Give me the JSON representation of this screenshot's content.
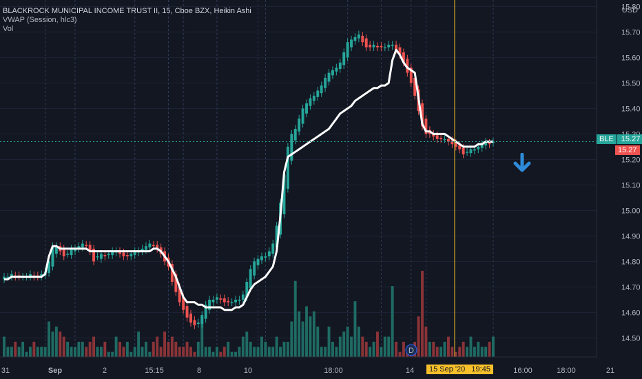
{
  "legend": {
    "title": "BLACKROCK MUNICIPAL INCOME TRUST II, 15, Cboe BZX, Heikin Ashi",
    "indicator1": "VWAP (Session, hlc3)",
    "indicator2": "Vol"
  },
  "axis": {
    "currency": "USD",
    "symbol_tag": "BLE",
    "last_price": "15.27",
    "vwap_price": "15.27",
    "crosshair_time": "15 Sep '20   19:45",
    "d_marker": "D"
  },
  "colors": {
    "up": "#26a69a",
    "down": "#ef5350",
    "vwap": "#ffffff",
    "crosshair": "#f7c02b",
    "arrow": "#2e8bd8",
    "background": "#131722"
  },
  "chart_data": {
    "type": "candlestick",
    "title": "BLACKROCK MUNICIPAL INCOME TRUST II, 15, Cboe BZX, Heikin Ashi",
    "ylim": [
      14.42,
      15.82
    ],
    "y_ticks": [
      14.5,
      14.6,
      14.7,
      14.8,
      14.9,
      15.0,
      15.1,
      15.2,
      15.3,
      15.4,
      15.5,
      15.6,
      15.7,
      15.8
    ],
    "x_ticks": [
      "31",
      "Sep",
      "2",
      "15:15",
      "8",
      "10",
      "18:00",
      "14",
      "16:00",
      "18:00",
      "21"
    ],
    "series": [
      {
        "name": "Heikin Ashi close",
        "values": [
          14.74,
          14.74,
          14.75,
          14.74,
          14.74,
          14.74,
          14.74,
          14.75,
          14.74,
          14.74,
          14.75,
          14.76,
          14.8,
          14.86,
          14.86,
          14.84,
          14.82,
          14.83,
          14.85,
          14.85,
          14.86,
          14.87,
          14.86,
          14.84,
          14.8,
          14.82,
          14.83,
          14.82,
          14.83,
          14.84,
          14.84,
          14.83,
          14.82,
          14.82,
          14.83,
          14.84,
          14.84,
          14.85,
          14.86,
          14.87,
          14.86,
          14.85,
          14.83,
          14.8,
          14.78,
          14.72,
          14.68,
          14.64,
          14.61,
          14.58,
          14.56,
          14.55,
          14.56,
          14.59,
          14.63,
          14.65,
          14.65,
          14.66,
          14.65,
          14.64,
          14.64,
          14.64,
          14.65,
          14.65,
          14.67,
          14.72,
          14.77,
          14.8,
          14.81,
          14.82,
          14.82,
          14.84,
          14.87,
          14.94,
          15.03,
          15.14,
          15.25,
          15.3,
          15.32,
          15.36,
          15.4,
          15.42,
          15.44,
          15.45,
          15.47,
          15.49,
          15.52,
          15.54,
          15.55,
          15.56,
          15.58,
          15.62,
          15.66,
          15.67,
          15.68,
          15.69,
          15.66,
          15.64,
          15.64,
          15.65,
          15.64,
          15.64,
          15.64,
          15.65,
          15.65,
          15.63,
          15.61,
          15.58,
          15.54,
          15.5,
          15.45,
          15.39,
          15.33,
          15.3,
          15.3,
          15.29,
          15.28,
          15.28,
          15.28,
          15.27,
          15.26,
          15.25,
          15.24,
          15.22,
          15.23,
          15.24,
          15.24,
          15.25,
          15.26,
          15.27,
          15.26,
          15.27
        ]
      },
      {
        "name": "VWAP (Session, hlc3)",
        "values": [
          14.73,
          14.73,
          14.74,
          14.74,
          14.74,
          14.74,
          14.74,
          14.74,
          14.74,
          14.74,
          14.74,
          14.75,
          14.82,
          14.86,
          14.86,
          14.85,
          14.85,
          14.85,
          14.85,
          14.85,
          14.85,
          14.85,
          14.85,
          14.84,
          14.84,
          14.84,
          14.84,
          14.84,
          14.84,
          14.84,
          14.84,
          14.84,
          14.84,
          14.84,
          14.84,
          14.84,
          14.84,
          14.84,
          14.84,
          14.84,
          14.85,
          14.85,
          14.84,
          14.82,
          14.8,
          14.77,
          14.74,
          14.7,
          14.66,
          14.64,
          14.64,
          14.64,
          14.63,
          14.63,
          14.62,
          14.62,
          14.62,
          14.62,
          14.62,
          14.61,
          14.61,
          14.61,
          14.62,
          14.62,
          14.63,
          14.66,
          14.69,
          14.71,
          14.72,
          14.73,
          14.74,
          14.76,
          14.78,
          14.84,
          14.98,
          15.15,
          15.21,
          15.22,
          15.23,
          15.24,
          15.25,
          15.26,
          15.27,
          15.28,
          15.29,
          15.3,
          15.31,
          15.32,
          15.34,
          15.36,
          15.38,
          15.39,
          15.4,
          15.41,
          15.43,
          15.44,
          15.45,
          15.46,
          15.47,
          15.48,
          15.48,
          15.49,
          15.49,
          15.5,
          15.59,
          15.63,
          15.61,
          15.58,
          15.56,
          15.55,
          15.54,
          15.44,
          15.34,
          15.31,
          15.31,
          15.3,
          15.3,
          15.3,
          15.3,
          15.29,
          15.28,
          15.27,
          15.26,
          15.25,
          15.25,
          15.25,
          15.25,
          15.26,
          15.26,
          15.27,
          15.27,
          15.27
        ]
      },
      {
        "name": "Vol",
        "values": [
          4,
          2,
          2,
          3,
          2,
          3,
          1,
          2,
          3,
          2,
          2,
          2,
          7,
          5,
          6,
          5,
          4,
          3,
          2,
          2,
          3,
          3,
          2,
          3,
          4,
          2,
          2,
          3,
          1,
          1,
          4,
          3,
          2,
          3,
          1,
          2,
          5,
          2,
          3,
          1,
          3,
          4,
          2,
          5,
          3,
          4,
          3,
          2,
          2,
          3,
          2,
          1,
          3,
          8,
          2,
          2,
          1,
          2,
          1,
          2,
          3,
          1,
          1,
          2,
          4,
          5,
          3,
          2,
          2,
          4,
          3,
          2,
          2,
          4,
          2,
          3,
          3,
          7,
          15,
          9,
          7,
          10,
          8,
          9,
          6,
          2,
          2,
          6,
          3,
          2,
          4,
          5,
          6,
          4,
          11,
          6,
          4,
          3,
          2,
          3,
          5,
          2,
          4,
          4,
          14,
          3,
          1,
          3,
          2,
          2,
          3,
          8,
          17,
          6,
          3,
          3,
          2,
          2,
          3,
          4,
          2,
          1,
          2,
          3,
          2,
          4,
          2,
          3,
          2,
          2,
          3,
          4
        ]
      }
    ]
  }
}
